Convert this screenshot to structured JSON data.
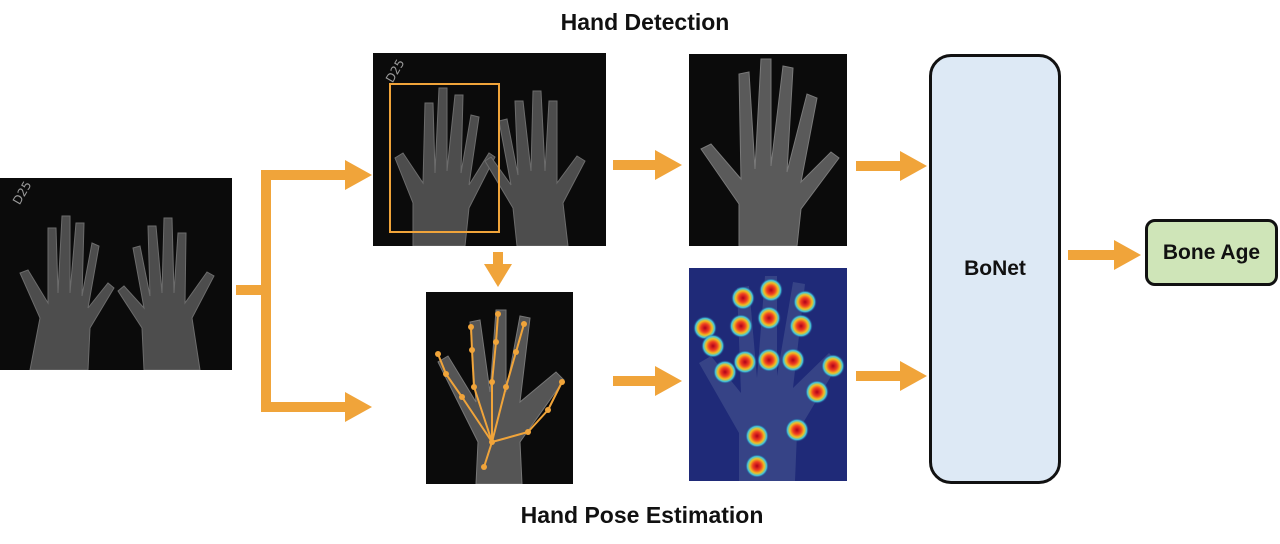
{
  "titles": {
    "hand_detection": "Hand Detection",
    "hand_pose_estimation": "Hand Pose Estimation"
  },
  "nodes": {
    "bonet": "BoNet",
    "bone_age": "Bone Age"
  },
  "xray_stamp": "D25",
  "colors": {
    "arrow": "#f0a43a",
    "bonet_fill": "#dde9f5",
    "bone_age_fill": "#cfe5b8",
    "keypoint": "#f0a43a",
    "heatmap_bg": "#1f2a78"
  }
}
